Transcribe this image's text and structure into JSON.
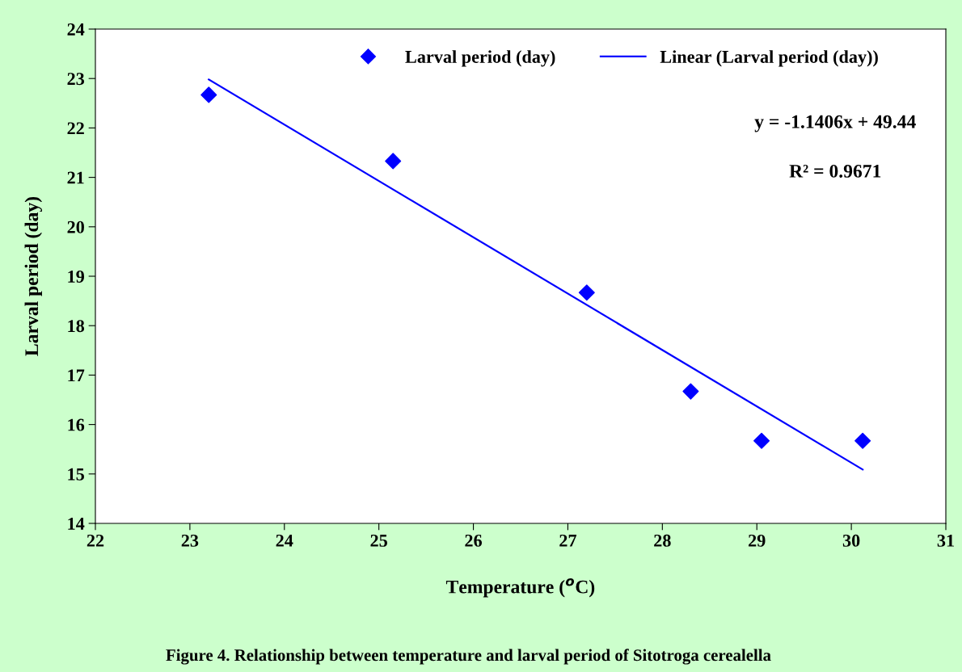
{
  "chart_data": {
    "type": "scatter",
    "xlabel": "Temperature ($^{o}$C)",
    "ylabel": "Larval period (day)",
    "xlim": [
      22,
      31
    ],
    "xticks": [
      22,
      23,
      24,
      25,
      26,
      27,
      28,
      29,
      30,
      31
    ],
    "ylim": [
      14,
      24
    ],
    "yticks": [
      14,
      15,
      16,
      17,
      18,
      19,
      20,
      21,
      22,
      23,
      24
    ],
    "grid": false,
    "legend": "top right",
    "series": [
      {
        "name": "Larval period (day)",
        "marker": "diamond",
        "color": "#0000ff",
        "x": [
          23.2,
          25.15,
          27.2,
          28.3,
          29.05,
          30.12
        ],
        "values": [
          22.67,
          21.33,
          18.67,
          16.67,
          15.67,
          15.67
        ]
      },
      {
        "name": "Linear (Larval period (day))",
        "type": "line",
        "color": "#0000ff",
        "x": [
          23.2,
          30.12
        ],
        "values": [
          22.98,
          15.09
        ]
      }
    ],
    "annotations": [
      "y = -1.1406x + 49.44",
      "R² = 0.9671",
      "Figure 4. Relationship between temperature and larval period of Sitotroga cerealella"
    ]
  }
}
